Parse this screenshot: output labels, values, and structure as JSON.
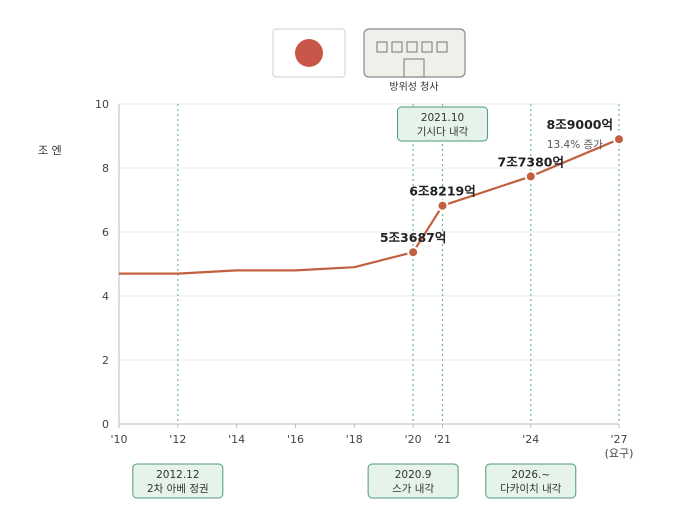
{
  "header": {
    "flag_icon": "japan-flag-icon",
    "building_icon": "building-icon",
    "building_caption": "방위성 청사",
    "flag_red": "#c8574a"
  },
  "chart_data": {
    "type": "line",
    "ylabel": "조 엔",
    "ylim": [
      0,
      10
    ],
    "yticks": [
      "0",
      "2",
      "4",
      "6",
      "8",
      "10"
    ],
    "xlim": [
      2010,
      2027
    ],
    "xticks": [
      {
        "x": 2010,
        "label": "'10"
      },
      {
        "x": 2012,
        "label": "'12"
      },
      {
        "x": 2014,
        "label": "'14"
      },
      {
        "x": 2016,
        "label": "'16"
      },
      {
        "x": 2018,
        "label": "'18"
      },
      {
        "x": 2020,
        "label": "'20"
      },
      {
        "x": 2021,
        "label": "'21"
      },
      {
        "x": 2024,
        "label": "'24"
      },
      {
        "x": 2027,
        "label": "'27",
        "sub": "(요구)"
      }
    ],
    "line_color": "#c0603e",
    "series": [
      {
        "points": [
          {
            "x": 2010,
            "y": 4.7
          },
          {
            "x": 2012,
            "y": 4.7
          },
          {
            "x": 2014,
            "y": 4.8
          },
          {
            "x": 2016,
            "y": 4.8
          },
          {
            "x": 2018,
            "y": 4.9
          },
          {
            "x": 2020,
            "y": 5.3687,
            "label": "5조3687억"
          },
          {
            "x": 2021,
            "y": 6.8219,
            "label": "6조8219억"
          },
          {
            "x": 2024,
            "y": 7.738,
            "label": "7조7380억"
          },
          {
            "x": 2027,
            "y": 8.9,
            "label": "8조9000억"
          }
        ]
      }
    ],
    "growth_note": "13.4% 증가",
    "events": [
      {
        "x": 2012,
        "line1": "2012.12",
        "line2": "2차 아베 정권",
        "pos": "bottom"
      },
      {
        "x": 2020,
        "line1": "2020.9",
        "line2": "스가 내각",
        "pos": "bottom"
      },
      {
        "x": 2021,
        "line1": "2021.10",
        "line2": "기시다 내각",
        "pos": "top"
      },
      {
        "x": 2024,
        "line1": "2026.~",
        "line2": "다카이치 내각",
        "pos": "bottom"
      }
    ],
    "event_box_fill": "#e6f3ea",
    "event_box_stroke": "#4f9a7a",
    "vline_color": "#6fb3a4"
  }
}
